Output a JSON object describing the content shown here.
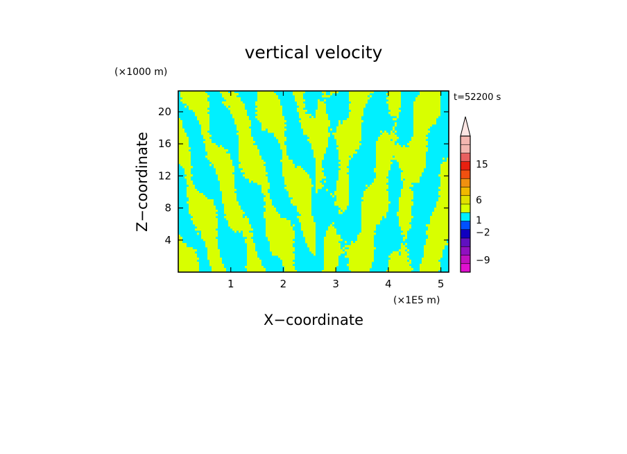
{
  "chart_data": {
    "type": "heatmap",
    "title": "vertical velocity",
    "xlabel": "X−coordinate",
    "ylabel": "Z−coordinate",
    "x_unit": "(×1E5 m)",
    "y_unit": "(×1000 m)",
    "time_label": "t=52200 s",
    "xlim": [
      0,
      5.15
    ],
    "ylim": [
      0,
      22.6
    ],
    "x_ticks": [
      1,
      2,
      3,
      4,
      5
    ],
    "y_ticks": [
      4,
      8,
      12,
      16,
      20
    ],
    "dominant_colors": {
      "positive_small": "#d8ff00",
      "negative_small": "#00f0ff"
    },
    "colorbar": {
      "labels": [
        {
          "value": 15,
          "text": "15"
        },
        {
          "value": 6,
          "text": "6"
        },
        {
          "value": 1,
          "text": "1"
        },
        {
          "value": -2,
          "text": "−2"
        },
        {
          "value": -9,
          "text": "−9"
        }
      ],
      "bins_top_to_bottom": [
        {
          "color": "#f4b6b0"
        },
        {
          "color": "#f4b6b0"
        },
        {
          "color": "#e86060"
        },
        {
          "color": "#e82010"
        },
        {
          "color": "#f05010"
        },
        {
          "color": "#f09010"
        },
        {
          "color": "#f0b800"
        },
        {
          "color": "#e0e000"
        },
        {
          "color": "#d8ff00"
        },
        {
          "color": "#00f0ff"
        },
        {
          "color": "#0050ff"
        },
        {
          "color": "#1000c0"
        },
        {
          "color": "#6010c0"
        },
        {
          "color": "#9010c0"
        },
        {
          "color": "#c010c0"
        },
        {
          "color": "#e010d0"
        }
      ],
      "extend_max": true
    }
  }
}
